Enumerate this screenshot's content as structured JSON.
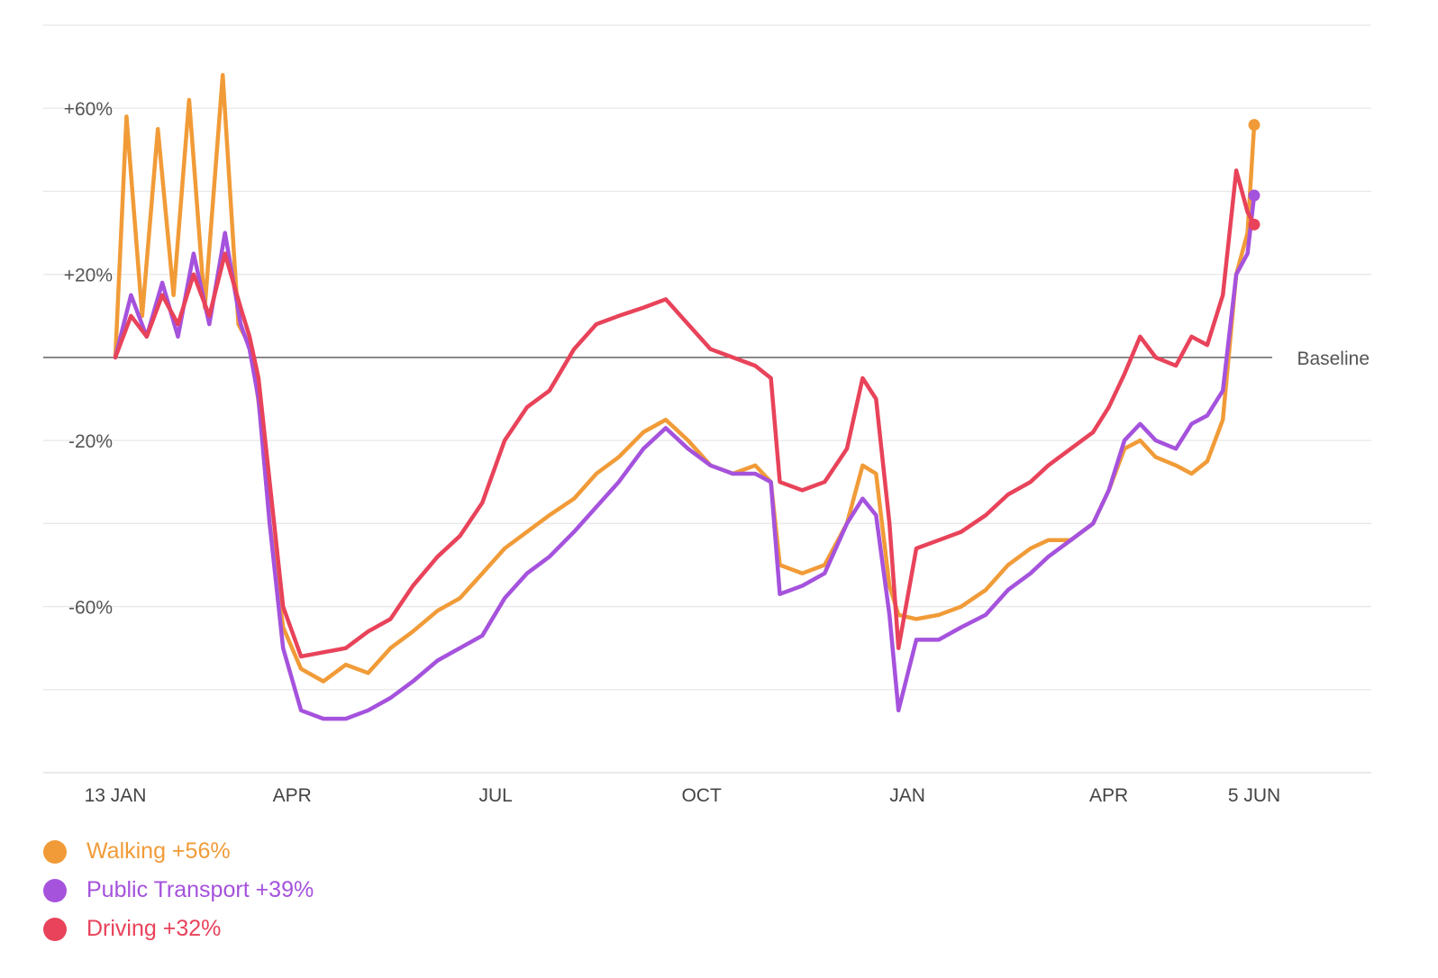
{
  "chart_data": {
    "type": "line",
    "title": "",
    "xlabel": "",
    "ylabel": "",
    "ylim": [
      -100,
      80
    ],
    "y_ticks": [
      {
        "value": 60,
        "label": "+60%"
      },
      {
        "value": 20,
        "label": "+20%"
      },
      {
        "value": -20,
        "label": "-20%"
      },
      {
        "value": -60,
        "label": "-60%"
      }
    ],
    "y_gridlines": [
      80,
      60,
      40,
      20,
      -20,
      -40,
      -60,
      -80,
      -100
    ],
    "baseline": {
      "value": 0,
      "label": "Baseline"
    },
    "x_range": [
      "2020-01-13",
      "2021-07-08"
    ],
    "x_ticks": [
      {
        "date": "2020-01-13",
        "label": "13 JAN"
      },
      {
        "date": "2020-04-01",
        "label": "APR"
      },
      {
        "date": "2020-07-01",
        "label": "JUL"
      },
      {
        "date": "2020-10-01",
        "label": "OCT"
      },
      {
        "date": "2021-01-01",
        "label": "JAN"
      },
      {
        "date": "2021-04-01",
        "label": "APR"
      },
      {
        "date": "2021-06-05",
        "label": "5 JUN"
      }
    ],
    "grid": true,
    "legend_position": "bottom-left",
    "series": [
      {
        "name": "Walking",
        "legend_label": "Walking +56%",
        "color": "#F19B38",
        "last_value": 56,
        "points": [
          [
            "2020-01-13",
            0
          ],
          [
            "2020-01-18",
            58
          ],
          [
            "2020-01-25",
            10
          ],
          [
            "2020-02-01",
            55
          ],
          [
            "2020-02-08",
            15
          ],
          [
            "2020-02-15",
            62
          ],
          [
            "2020-02-22",
            12
          ],
          [
            "2020-03-01",
            68
          ],
          [
            "2020-03-08",
            8
          ],
          [
            "2020-03-14",
            2
          ],
          [
            "2020-03-18",
            -15
          ],
          [
            "2020-03-22",
            -40
          ],
          [
            "2020-03-28",
            -65
          ],
          [
            "2020-04-05",
            -75
          ],
          [
            "2020-04-15",
            -78
          ],
          [
            "2020-04-25",
            -74
          ],
          [
            "2020-05-05",
            -76
          ],
          [
            "2020-05-15",
            -70
          ],
          [
            "2020-05-25",
            -66
          ],
          [
            "2020-06-05",
            -61
          ],
          [
            "2020-06-15",
            -58
          ],
          [
            "2020-06-25",
            -52
          ],
          [
            "2020-07-05",
            -46
          ],
          [
            "2020-07-15",
            -42
          ],
          [
            "2020-07-25",
            -38
          ],
          [
            "2020-08-05",
            -34
          ],
          [
            "2020-08-15",
            -28
          ],
          [
            "2020-08-25",
            -24
          ],
          [
            "2020-09-05",
            -18
          ],
          [
            "2020-09-15",
            -15
          ],
          [
            "2020-09-25",
            -20
          ],
          [
            "2020-10-05",
            -26
          ],
          [
            "2020-10-15",
            -28
          ],
          [
            "2020-10-25",
            -26
          ],
          [
            "2020-11-01",
            -30
          ],
          [
            "2020-11-05",
            -50
          ],
          [
            "2020-11-15",
            -52
          ],
          [
            "2020-11-25",
            -50
          ],
          [
            "2020-12-05",
            -40
          ],
          [
            "2020-12-12",
            -26
          ],
          [
            "2020-12-18",
            -28
          ],
          [
            "2020-12-24",
            -55
          ],
          [
            "2020-12-28",
            -62
          ],
          [
            "2021-01-05",
            -63
          ],
          [
            "2021-01-15",
            -62
          ],
          [
            "2021-01-25",
            -60
          ],
          [
            "2021-02-05",
            -56
          ],
          [
            "2021-02-15",
            -50
          ],
          [
            "2021-02-25",
            -46
          ],
          [
            "2021-03-05",
            -44
          ],
          [
            "2021-03-15",
            -44
          ],
          [
            "2021-03-25",
            -40
          ],
          [
            "2021-04-01",
            -32
          ],
          [
            "2021-04-08",
            -22
          ],
          [
            "2021-04-15",
            -20
          ],
          [
            "2021-04-22",
            -24
          ],
          [
            "2021-05-01",
            -26
          ],
          [
            "2021-05-08",
            -28
          ],
          [
            "2021-05-15",
            -25
          ],
          [
            "2021-05-22",
            -15
          ],
          [
            "2021-05-28",
            20
          ],
          [
            "2021-06-02",
            30
          ],
          [
            "2021-06-05",
            56
          ]
        ]
      },
      {
        "name": "Public Transport",
        "legend_label": "Public Transport +39%",
        "color": "#A552DD",
        "last_value": 39,
        "points": [
          [
            "2020-01-13",
            0
          ],
          [
            "2020-01-20",
            15
          ],
          [
            "2020-01-27",
            5
          ],
          [
            "2020-02-03",
            18
          ],
          [
            "2020-02-10",
            5
          ],
          [
            "2020-02-17",
            25
          ],
          [
            "2020-02-24",
            8
          ],
          [
            "2020-03-02",
            30
          ],
          [
            "2020-03-09",
            8
          ],
          [
            "2020-03-13",
            2
          ],
          [
            "2020-03-17",
            -10
          ],
          [
            "2020-03-22",
            -40
          ],
          [
            "2020-03-28",
            -70
          ],
          [
            "2020-04-05",
            -85
          ],
          [
            "2020-04-15",
            -87
          ],
          [
            "2020-04-25",
            -87
          ],
          [
            "2020-05-05",
            -85
          ],
          [
            "2020-05-15",
            -82
          ],
          [
            "2020-05-25",
            -78
          ],
          [
            "2020-06-05",
            -73
          ],
          [
            "2020-06-15",
            -70
          ],
          [
            "2020-06-25",
            -67
          ],
          [
            "2020-07-05",
            -58
          ],
          [
            "2020-07-15",
            -52
          ],
          [
            "2020-07-25",
            -48
          ],
          [
            "2020-08-05",
            -42
          ],
          [
            "2020-08-15",
            -36
          ],
          [
            "2020-08-25",
            -30
          ],
          [
            "2020-09-05",
            -22
          ],
          [
            "2020-09-15",
            -17
          ],
          [
            "2020-09-25",
            -22
          ],
          [
            "2020-10-05",
            -26
          ],
          [
            "2020-10-15",
            -28
          ],
          [
            "2020-10-25",
            -28
          ],
          [
            "2020-11-01",
            -30
          ],
          [
            "2020-11-05",
            -57
          ],
          [
            "2020-11-15",
            -55
          ],
          [
            "2020-11-25",
            -52
          ],
          [
            "2020-12-05",
            -40
          ],
          [
            "2020-12-12",
            -34
          ],
          [
            "2020-12-18",
            -38
          ],
          [
            "2020-12-24",
            -62
          ],
          [
            "2020-12-28",
            -85
          ],
          [
            "2021-01-05",
            -68
          ],
          [
            "2021-01-15",
            -68
          ],
          [
            "2021-01-25",
            -65
          ],
          [
            "2021-02-05",
            -62
          ],
          [
            "2021-02-15",
            -56
          ],
          [
            "2021-02-25",
            -52
          ],
          [
            "2021-03-05",
            -48
          ],
          [
            "2021-03-15",
            -44
          ],
          [
            "2021-03-25",
            -40
          ],
          [
            "2021-04-01",
            -32
          ],
          [
            "2021-04-08",
            -20
          ],
          [
            "2021-04-15",
            -16
          ],
          [
            "2021-04-22",
            -20
          ],
          [
            "2021-05-01",
            -22
          ],
          [
            "2021-05-08",
            -16
          ],
          [
            "2021-05-15",
            -14
          ],
          [
            "2021-05-22",
            -8
          ],
          [
            "2021-05-28",
            20
          ],
          [
            "2021-06-02",
            25
          ],
          [
            "2021-06-05",
            39
          ]
        ]
      },
      {
        "name": "Driving",
        "legend_label": "Driving +32%",
        "color": "#E8435A",
        "last_value": 32,
        "points": [
          [
            "2020-01-13",
            0
          ],
          [
            "2020-01-20",
            10
          ],
          [
            "2020-01-27",
            5
          ],
          [
            "2020-02-03",
            15
          ],
          [
            "2020-02-10",
            8
          ],
          [
            "2020-02-17",
            20
          ],
          [
            "2020-02-24",
            10
          ],
          [
            "2020-03-02",
            25
          ],
          [
            "2020-03-09",
            12
          ],
          [
            "2020-03-13",
            5
          ],
          [
            "2020-03-17",
            -5
          ],
          [
            "2020-03-22",
            -30
          ],
          [
            "2020-03-28",
            -60
          ],
          [
            "2020-04-05",
            -72
          ],
          [
            "2020-04-15",
            -71
          ],
          [
            "2020-04-25",
            -70
          ],
          [
            "2020-05-05",
            -66
          ],
          [
            "2020-05-15",
            -63
          ],
          [
            "2020-05-25",
            -55
          ],
          [
            "2020-06-05",
            -48
          ],
          [
            "2020-06-15",
            -43
          ],
          [
            "2020-06-25",
            -35
          ],
          [
            "2020-07-05",
            -20
          ],
          [
            "2020-07-15",
            -12
          ],
          [
            "2020-07-25",
            -8
          ],
          [
            "2020-08-05",
            2
          ],
          [
            "2020-08-15",
            8
          ],
          [
            "2020-08-25",
            10
          ],
          [
            "2020-09-05",
            12
          ],
          [
            "2020-09-15",
            14
          ],
          [
            "2020-09-25",
            8
          ],
          [
            "2020-10-05",
            2
          ],
          [
            "2020-10-15",
            0
          ],
          [
            "2020-10-25",
            -2
          ],
          [
            "2020-11-01",
            -5
          ],
          [
            "2020-11-05",
            -30
          ],
          [
            "2020-11-15",
            -32
          ],
          [
            "2020-11-25",
            -30
          ],
          [
            "2020-12-05",
            -22
          ],
          [
            "2020-12-12",
            -5
          ],
          [
            "2020-12-18",
            -10
          ],
          [
            "2020-12-24",
            -40
          ],
          [
            "2020-12-28",
            -70
          ],
          [
            "2021-01-05",
            -46
          ],
          [
            "2021-01-15",
            -44
          ],
          [
            "2021-01-25",
            -42
          ],
          [
            "2021-02-05",
            -38
          ],
          [
            "2021-02-15",
            -33
          ],
          [
            "2021-02-25",
            -30
          ],
          [
            "2021-03-05",
            -26
          ],
          [
            "2021-03-15",
            -22
          ],
          [
            "2021-03-25",
            -18
          ],
          [
            "2021-04-01",
            -12
          ],
          [
            "2021-04-08",
            -4
          ],
          [
            "2021-04-15",
            5
          ],
          [
            "2021-04-22",
            0
          ],
          [
            "2021-05-01",
            -2
          ],
          [
            "2021-05-08",
            5
          ],
          [
            "2021-05-15",
            3
          ],
          [
            "2021-05-22",
            15
          ],
          [
            "2021-05-28",
            45
          ],
          [
            "2021-06-02",
            35
          ],
          [
            "2021-06-05",
            32
          ]
        ]
      }
    ]
  }
}
